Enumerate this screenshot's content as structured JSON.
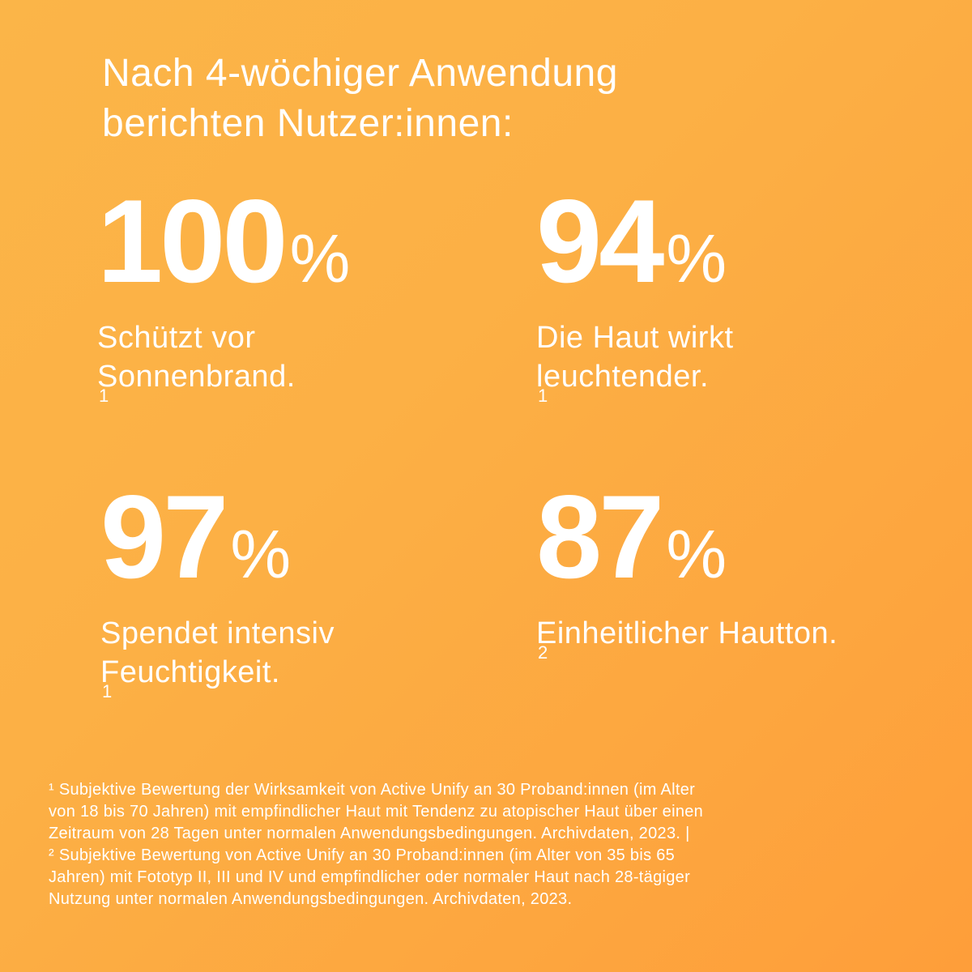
{
  "headline": {
    "line1": "Nach 4-wöchiger Anwendung",
    "line2": "berichten Nutzer:innen:"
  },
  "stats": [
    {
      "value": "100",
      "unit": "%",
      "label_line1": "Schützt vor",
      "label_line2": "Sonnenbrand.",
      "footnote_ref": "1"
    },
    {
      "value": "94",
      "unit": "%",
      "label_line1": "Die Haut wirkt",
      "label_line2": "leuchtender.",
      "footnote_ref": "1"
    },
    {
      "value": "97",
      "unit": "%",
      "label_line1": "Spendet intensiv",
      "label_line2": "Feuchtigkeit.",
      "footnote_ref": "1"
    },
    {
      "value": "87",
      "unit": "%",
      "label_line1": "Einheitlicher Hautton.",
      "footnote_ref": "2"
    }
  ],
  "footnotes": {
    "lines": [
      "¹ Subjektive Bewertung der Wirksamkeit von Active Unify an 30 Proband:innen (im Alter",
      "von 18 bis 70 Jahren) mit empfindlicher Haut mit Tendenz zu atopischer Haut über einen",
      "Zeitraum von 28 Tagen unter normalen Anwendungsbedingungen. Archivdaten, 2023. |",
      " ² Subjektive Bewertung von Active Unify an 30 Proband:innen (im Alter von 35 bis 65",
      "Jahren) mit Fototyp II, III und IV und empfindlicher oder normaler Haut nach 28-tägiger",
      "Nutzung unter normalen Anwendungsbedingungen. Archivdaten, 2023."
    ]
  },
  "colors": {
    "background_start": "#fbb548",
    "background_end": "#fe9e3a",
    "text": "#ffffff"
  }
}
